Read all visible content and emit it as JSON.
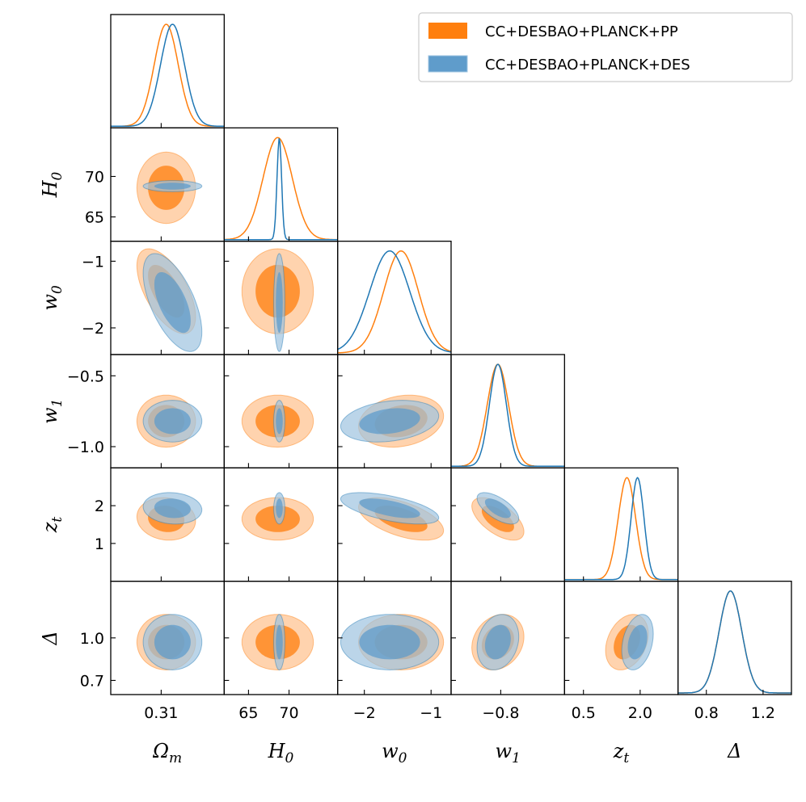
{
  "colors": {
    "series_a": "#ff7f0e",
    "series_b": "#1f77b4",
    "series_a_fill_outer": "#ffc18c",
    "series_a_fill_inner": "#ff7f0e",
    "series_b_fill_outer": "#9ec3e0",
    "series_b_fill_inner": "#5f9ccb",
    "overlap_outer": "#c4b4a8",
    "overlap_inner": "#5c5a57"
  },
  "legend": {
    "placement": "top-right",
    "entries": [
      {
        "key": "a",
        "label": "CC+DESBAO+PLANCK+PP"
      },
      {
        "key": "b",
        "label": "CC+DESBAO+PLANCK+DES"
      }
    ]
  },
  "chart_data": {
    "type": "corner",
    "parameters": [
      {
        "key": "om",
        "label_base": "Ω",
        "label_sub": "m",
        "range": [
          0.27,
          0.36
        ],
        "ticks": [
          0.31
        ],
        "tick_labels": [
          "0.31"
        ]
      },
      {
        "key": "h0",
        "label_base": "H",
        "label_sub": "0",
        "range": [
          62,
          76
        ],
        "ticks": [
          65,
          70
        ],
        "tick_labels": [
          "65",
          "70"
        ]
      },
      {
        "key": "w0",
        "label_base": "w",
        "label_sub": "0",
        "range": [
          -2.4,
          -0.7
        ],
        "ticks": [
          -2,
          -1
        ],
        "tick_labels": [
          "−2",
          "−1"
        ]
      },
      {
        "key": "w1",
        "label_base": "w",
        "label_sub": "1",
        "range": [
          -1.15,
          -0.35
        ],
        "ticks": [
          -0.8
        ],
        "tick_labels": [
          "−0.8"
        ],
        "y_ticks": [
          -0.5,
          -1.0
        ],
        "y_tick_labels": [
          "−0.5",
          "−1.0"
        ]
      },
      {
        "key": "zt",
        "label_base": "z",
        "label_sub": "t",
        "range": [
          0.0,
          3.0
        ],
        "ticks": [
          0.5,
          2.0
        ],
        "tick_labels": [
          "0.5",
          "2.0"
        ],
        "y_ticks": [
          1,
          2
        ],
        "y_tick_labels": [
          "1",
          "2"
        ]
      },
      {
        "key": "delta",
        "label_base": "Δ",
        "label_sub": "",
        "range": [
          0.6,
          1.4
        ],
        "ticks": [
          0.8,
          1.2
        ],
        "tick_labels": [
          "0.8",
          "1.2"
        ],
        "y_ticks": [
          0.7,
          1.0
        ],
        "y_tick_labels": [
          "0.7",
          "1.0"
        ]
      }
    ],
    "series": [
      {
        "key": "a",
        "name": "CC+DESBAO+PLANCK+PP",
        "mean": {
          "om": 0.314,
          "h0": 68.6,
          "w0": -1.45,
          "w1": -0.82,
          "zt": 1.65,
          "delta": 0.97
        },
        "sigma": {
          "om": 0.0095,
          "h0": 1.8,
          "w0": 0.26,
          "w1": 0.075,
          "zt": 0.23,
          "delta": 0.08
        }
      },
      {
        "key": "b",
        "name": "CC+DESBAO+PLANCK+DES",
        "mean": {
          "om": 0.319,
          "h0": 68.8,
          "w0": -1.62,
          "w1": -0.82,
          "zt": 1.93,
          "delta": 0.97
        },
        "sigma": {
          "om": 0.0095,
          "h0": 0.28,
          "w0": 0.3,
          "w1": 0.06,
          "zt": 0.17,
          "delta": 0.08
        }
      }
    ],
    "correlations": {
      "a": {
        "om|w0": -0.6,
        "om|zt": -0.1,
        "w0|w1": 0.2,
        "w0|zt": -0.55,
        "w1|zt": -0.6,
        "zt|delta": 0.3,
        "w1|delta": 0.2
      },
      "b": {
        "om|w0": -0.6,
        "om|zt": -0.1,
        "w0|w1": 0.25,
        "w0|zt": -0.6,
        "w1|zt": -0.65,
        "zt|delta": 0.3,
        "w1|delta": 0.2
      }
    }
  }
}
